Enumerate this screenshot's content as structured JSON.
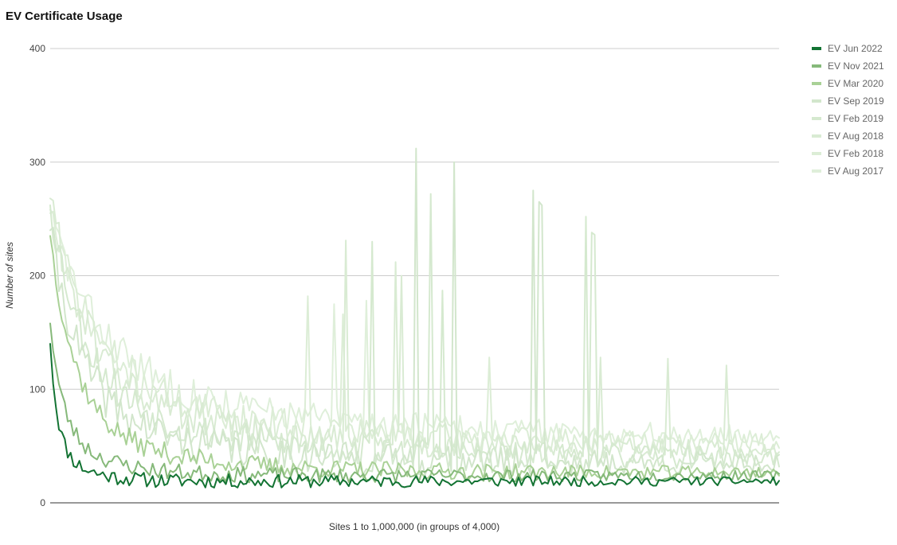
{
  "chart_data": {
    "type": "line",
    "title": "EV Certificate Usage",
    "xlabel": "Sites 1 to 1,000,000 (in groups of 4,000)",
    "ylabel": "Number of sites",
    "ylim": [
      0,
      400
    ],
    "yticks": [
      0,
      100,
      200,
      300,
      400
    ],
    "x": {
      "count": 250,
      "from": 1,
      "to": 250,
      "note_units": "group index"
    },
    "grid": true,
    "legend_position": "right",
    "series": [
      {
        "name": "EV Jun 2022",
        "color": "#137333",
        "width": 2.0,
        "shape": {
          "start": 140,
          "end": 19,
          "decay": 0.1,
          "floor": 0.28,
          "noise": 7,
          "seed": 11
        },
        "peaks": []
      },
      {
        "name": "EV Nov 2021",
        "color": "#86b97a",
        "width": 2.0,
        "shape": {
          "start": 158,
          "end": 24,
          "decay": 0.06,
          "floor": 0.32,
          "noise": 8,
          "seed": 23
        },
        "peaks": []
      },
      {
        "name": "EV Mar 2020",
        "color": "#a9d196",
        "width": 2.0,
        "shape": {
          "start": 235,
          "end": 27,
          "decay": 0.03,
          "floor": 0.25,
          "noise": 10,
          "seed": 37
        },
        "peaks": []
      },
      {
        "name": "EV Sep 2019",
        "color": "#d2e6cc",
        "width": 2.0,
        "shape": {
          "start": 240,
          "end": 35,
          "decay": 0.025,
          "floor": 0.28,
          "noise": 18,
          "seed": 41
        },
        "peaks": [
          [
            125,
            312
          ],
          [
            138,
            300
          ],
          [
            165,
            275
          ],
          [
            167,
            265
          ],
          [
            168,
            262
          ]
        ]
      },
      {
        "name": "EV Feb 2019",
        "color": "#d5e9cf",
        "width": 2.0,
        "shape": {
          "start": 262,
          "end": 40,
          "decay": 0.022,
          "floor": 0.3,
          "noise": 18,
          "seed": 53
        },
        "peaks": [
          [
            110,
            230
          ],
          [
            130,
            272
          ],
          [
            134,
            187
          ],
          [
            183,
            252
          ],
          [
            185,
            238
          ],
          [
            186,
            236
          ]
        ]
      },
      {
        "name": "EV Aug 2018",
        "color": "#d9ebd3",
        "width": 2.0,
        "shape": {
          "start": 268,
          "end": 45,
          "decay": 0.02,
          "floor": 0.32,
          "noise": 18,
          "seed": 61
        },
        "peaks": [
          [
            101,
            231
          ],
          [
            118,
            212
          ],
          [
            120,
            200
          ],
          [
            188,
            128
          ],
          [
            211,
            127
          ],
          [
            231,
            121
          ]
        ]
      },
      {
        "name": "EV Feb 2018",
        "color": "#dcedd6",
        "width": 2.0,
        "shape": {
          "start": 258,
          "end": 52,
          "decay": 0.018,
          "floor": 0.34,
          "noise": 17,
          "seed": 71
        },
        "peaks": [
          [
            88,
            182
          ],
          [
            100,
            166
          ],
          [
            150,
            128
          ]
        ]
      },
      {
        "name": "EV Aug 2017",
        "color": "#dfefda",
        "width": 2.0,
        "shape": {
          "start": 255,
          "end": 58,
          "decay": 0.016,
          "floor": 0.36,
          "noise": 17,
          "seed": 83
        },
        "peaks": [
          [
            97,
            175
          ],
          [
            108,
            178
          ]
        ]
      }
    ]
  }
}
